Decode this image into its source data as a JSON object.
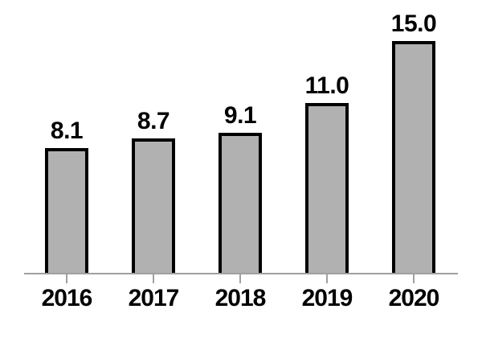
{
  "chart_data": {
    "type": "bar",
    "title": "",
    "categories": [
      "2016",
      "2017",
      "2018",
      "2019",
      "2020"
    ],
    "values": [
      8.1,
      8.7,
      9.1,
      11.0,
      15.0
    ],
    "value_labels": [
      "8.1",
      "8.7",
      "9.1",
      "11.0",
      "15.0"
    ],
    "xlabel": "",
    "ylabel": "",
    "ylim": [
      0,
      16
    ],
    "grid": false,
    "legend": false,
    "colors": {
      "bar_fill": "#b1b1b1",
      "bar_border": "#000000",
      "axis_line": "#a0a0a0",
      "label_text": "#000000",
      "background": "#ffffff"
    }
  }
}
